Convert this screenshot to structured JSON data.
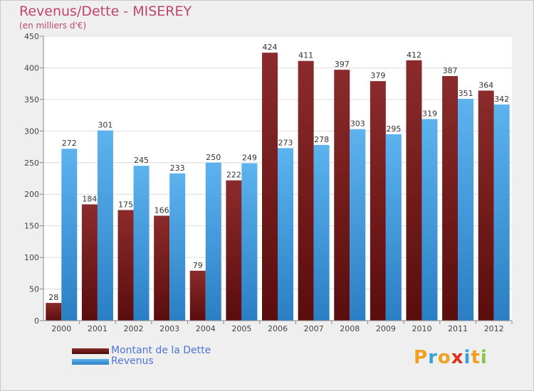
{
  "title": "Revenus/Dette - MISEREY",
  "subtitle": "(en milliers d'€)",
  "brand": {
    "letters": [
      "P",
      "r",
      "o",
      "x",
      "i",
      "t",
      "i"
    ],
    "colors": [
      "#f0a020",
      "#3aa0d8",
      "#f0a020",
      "#e03020",
      "#3aa0d8",
      "#f0a020",
      "#8bc34a"
    ]
  },
  "chart_data": {
    "type": "bar",
    "title": "Revenus/Dette - MISEREY",
    "ylabel": "",
    "xlabel": "",
    "ylim": [
      0,
      450
    ],
    "yticks": [
      0,
      50,
      100,
      150,
      200,
      250,
      300,
      350,
      400,
      450
    ],
    "categories": [
      "2000",
      "2001",
      "2002",
      "2003",
      "2004",
      "2005",
      "2006",
      "2007",
      "2008",
      "2009",
      "2010",
      "2011",
      "2012"
    ],
    "grid": true,
    "legend_position": "bottom-left",
    "series": [
      {
        "name": "Montant de la Dette",
        "color": "#7a1f1f",
        "values": [
          28,
          184,
          175,
          166,
          79,
          222,
          424,
          411,
          397,
          379,
          412,
          387,
          364
        ]
      },
      {
        "name": "Revenus",
        "color": "#4aa3e6",
        "values": [
          272,
          301,
          245,
          233,
          250,
          249,
          273,
          278,
          303,
          295,
          319,
          351,
          342
        ]
      }
    ]
  }
}
